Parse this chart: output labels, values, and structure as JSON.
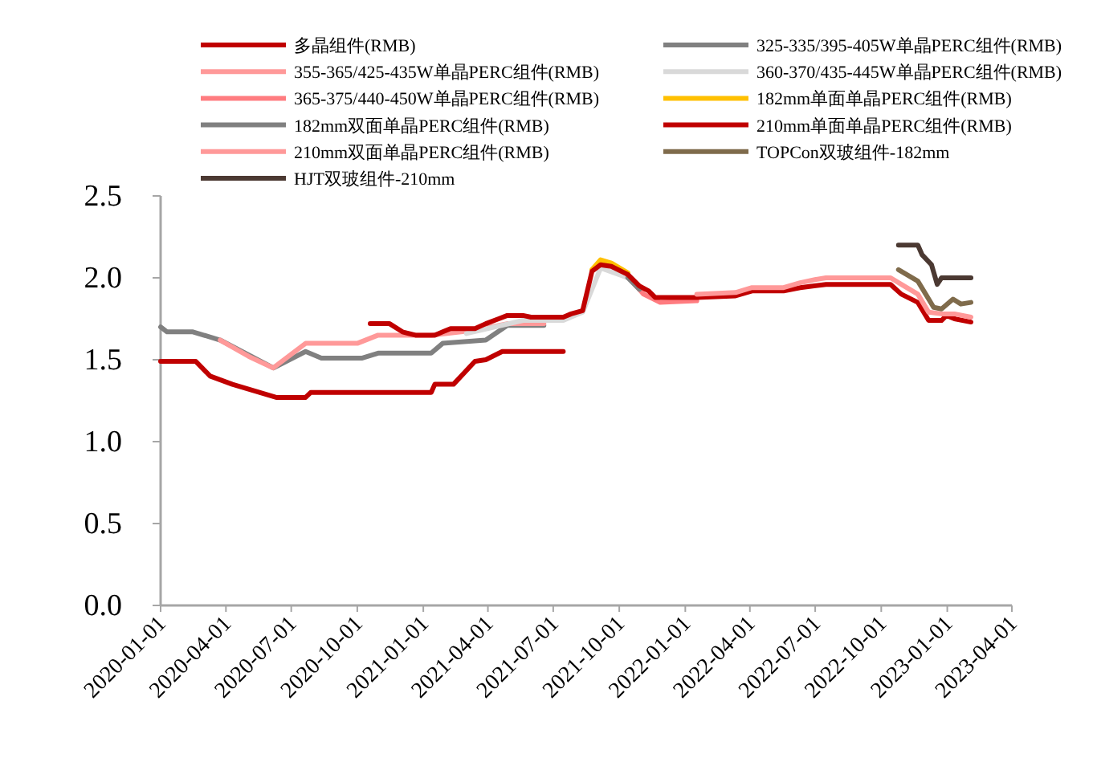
{
  "chart_data": {
    "type": "line",
    "xlim": [
      "2020-01-01",
      "2023-04-01"
    ],
    "xticks": [
      "2020-01-01",
      "2020-04-01",
      "2020-07-01",
      "2020-10-01",
      "2021-01-01",
      "2021-04-01",
      "2021-07-01",
      "2021-10-01",
      "2022-01-01",
      "2022-04-01",
      "2022-07-01",
      "2022-10-01",
      "2023-01-01",
      "2023-04-01"
    ],
    "ylim": [
      0,
      2.5
    ],
    "yticks": [
      {
        "value": 0,
        "label": "0.0"
      },
      {
        "value": 0.5,
        "label": "0.5"
      },
      {
        "value": 1,
        "label": "1.0"
      },
      {
        "value": 1.5,
        "label": "1.5"
      },
      {
        "value": 2,
        "label": "2.0"
      },
      {
        "value": 2.5,
        "label": "2.5"
      }
    ],
    "grid": false,
    "legend": "top",
    "series": [
      {
        "name": "多晶组件(RMB)",
        "color": "#c00000",
        "x": [
          "2020-01-01",
          "2020-02-19",
          "2020-03-10",
          "2020-04-10",
          "2020-06-10",
          "2020-07-21",
          "2020-07-28",
          "2021-01-12",
          "2021-01-17",
          "2021-02-12",
          "2021-03-14",
          "2021-03-29",
          "2021-04-21",
          "2021-07-15"
        ],
        "values": [
          1.49,
          1.49,
          1.4,
          1.35,
          1.27,
          1.27,
          1.3,
          1.3,
          1.35,
          1.35,
          1.49,
          1.5,
          1.55,
          1.55
        ]
      },
      {
        "name": "325-335/395-405W单晶PERC组件(RMB)",
        "color": "#808080",
        "x": [
          "2020-01-01",
          "2020-01-10",
          "2020-02-15",
          "2020-03-24",
          "2020-06-06",
          "2020-07-21",
          "2020-08-12",
          "2020-10-08",
          "2020-10-30",
          "2021-01-12",
          "2021-01-28",
          "2021-03-29",
          "2021-04-28",
          "2021-06-18"
        ],
        "values": [
          1.7,
          1.67,
          1.67,
          1.62,
          1.45,
          1.55,
          1.51,
          1.51,
          1.54,
          1.54,
          1.6,
          1.62,
          1.71,
          1.71
        ]
      },
      {
        "name": "355-365/425-435W单晶PERC组件(RMB)",
        "color": "#ff9999",
        "x": [
          "2020-03-24",
          "2020-05-03",
          "2020-06-06",
          "2020-07-21",
          "2020-10-01",
          "2020-10-30",
          "2021-01-12",
          "2021-03-14",
          "2021-04-28",
          "2021-06-18"
        ],
        "values": [
          1.62,
          1.52,
          1.45,
          1.6,
          1.6,
          1.65,
          1.65,
          1.68,
          1.72,
          1.72
        ]
      },
      {
        "name": "360-370/435-445W单晶PERC组件(RMB)",
        "color": "#d9d9d9",
        "x": [
          "2021-03-02",
          "2021-05-20",
          "2021-07-15",
          "2021-08-11",
          "2021-09-05",
          "2021-10-13"
        ],
        "values": [
          1.66,
          1.74,
          1.74,
          1.79,
          2.06,
          2.0
        ]
      },
      {
        "name": "365-375/440-450W单晶PERC组件(RMB)",
        "color": "#ff7c80",
        "x": [
          "2021-10-13",
          "2021-11-04",
          "2021-11-27",
          "2022-01-17"
        ],
        "values": [
          2.01,
          1.9,
          1.85,
          1.86
        ]
      },
      {
        "name": "182mm单面单晶PERC组件(RMB)",
        "color": "#ffc000",
        "x": [
          "2021-08-24",
          "2021-09-05",
          "2021-09-20",
          "2021-10-13"
        ],
        "values": [
          2.05,
          2.11,
          2.09,
          2.03
        ]
      },
      {
        "name": "182mm双面单晶PERC组件(RMB)",
        "color": "#808080",
        "x": [
          "2021-10-13",
          "2021-10-29"
        ],
        "values": [
          2.0,
          1.93
        ]
      },
      {
        "name": "210mm单面单晶PERC组件(RMB)",
        "color": "#c00000",
        "x": [
          "2020-10-19",
          "2020-11-15",
          "2020-12-03",
          "2020-12-21",
          "2021-01-17",
          "2021-01-28",
          "2021-02-08",
          "2021-03-14",
          "2021-03-29",
          "2021-04-16",
          "2021-04-28",
          "2021-05-20",
          "2021-05-31",
          "2021-07-15",
          "2021-07-26",
          "2021-08-11",
          "2021-08-24",
          "2021-09-05",
          "2021-09-20",
          "2021-10-13",
          "2021-10-29",
          "2021-11-11",
          "2021-11-20",
          "2022-01-17",
          "2022-03-12",
          "2022-04-04",
          "2022-05-18",
          "2022-06-10",
          "2022-07-16",
          "2022-10-14",
          "2022-10-29",
          "2022-11-21",
          "2022-12-06",
          "2022-12-24",
          "2022-12-31",
          "2023-01-11",
          "2023-02-03"
        ],
        "values": [
          1.72,
          1.72,
          1.67,
          1.65,
          1.65,
          1.67,
          1.69,
          1.69,
          1.72,
          1.75,
          1.77,
          1.77,
          1.76,
          1.76,
          1.78,
          1.8,
          2.04,
          2.08,
          2.07,
          2.02,
          1.95,
          1.92,
          1.88,
          1.88,
          1.89,
          1.92,
          1.92,
          1.94,
          1.96,
          1.96,
          1.9,
          1.85,
          1.74,
          1.74,
          1.77,
          1.75,
          1.73
        ]
      },
      {
        "name": "210mm双面单晶PERC组件(RMB)",
        "color": "#ff9999",
        "x": [
          "2022-01-17",
          "2022-03-12",
          "2022-04-04",
          "2022-05-18",
          "2022-06-10",
          "2022-07-02",
          "2022-07-16",
          "2022-10-14",
          "2022-10-29",
          "2022-11-21",
          "2022-12-06",
          "2022-12-24",
          "2023-01-11",
          "2023-02-03"
        ],
        "values": [
          1.9,
          1.91,
          1.94,
          1.94,
          1.97,
          1.99,
          2.0,
          2.0,
          1.96,
          1.9,
          1.79,
          1.78,
          1.78,
          1.76
        ]
      },
      {
        "name": "TOPCon双玻组件-182mm",
        "color": "#7f6b4b",
        "x": [
          "2022-10-25",
          "2022-11-21",
          "2022-12-02",
          "2022-12-13",
          "2022-12-24",
          "2023-01-09",
          "2023-01-20",
          "2023-02-03"
        ],
        "values": [
          2.05,
          1.98,
          1.9,
          1.82,
          1.81,
          1.87,
          1.84,
          1.85
        ]
      },
      {
        "name": "HJT双玻组件-210mm",
        "color": "#4b3932",
        "x": [
          "2022-10-25",
          "2022-11-21",
          "2022-11-27",
          "2022-12-10",
          "2022-12-18",
          "2022-12-24",
          "2023-02-03"
        ],
        "values": [
          2.2,
          2.2,
          2.14,
          2.08,
          1.96,
          2.0,
          2.0
        ]
      }
    ]
  }
}
